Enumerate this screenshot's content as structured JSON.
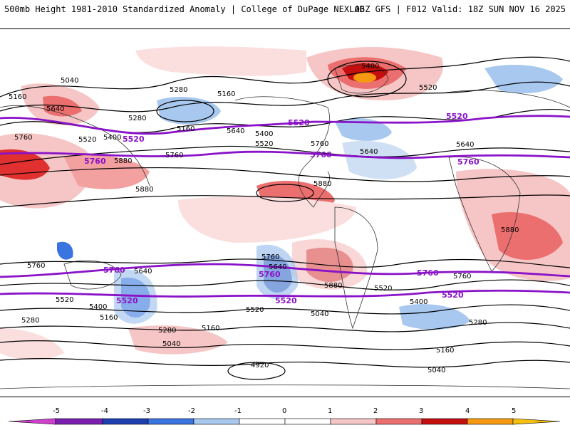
{
  "header": {
    "title": "500mb Height 1981-2010 Standardized Anomaly | College of DuPage NEXLAB",
    "run_info": "06Z GFS | F012 Valid: 18Z SUN NOV 16 2025"
  },
  "colors": {
    "thick_contour": "#8a12c8",
    "height_contour": "#000000",
    "coast": "#333333"
  },
  "contour_labels": [
    {
      "text": "5280",
      "id": "a"
    },
    {
      "text": "5400",
      "id": "b"
    },
    {
      "text": "5520",
      "id": "c"
    },
    {
      "text": "5040",
      "id": "d"
    },
    {
      "text": "5160",
      "id": "e"
    },
    {
      "text": "5640",
      "id": "f"
    },
    {
      "text": "5760",
      "id": "g"
    },
    {
      "text": "5880",
      "id": "h"
    },
    {
      "text": "4920",
      "id": "i"
    }
  ],
  "labels_visible": [
    "5280",
    "5040",
    "5160",
    "5640",
    "5760",
    "5520",
    "5400",
    "5880",
    "5280",
    "5160",
    "5640",
    "5400",
    "5520",
    "5760",
    "5880",
    "5280",
    "5400",
    "5520",
    "5160",
    "5640",
    "5760",
    "5880",
    "5760",
    "5640",
    "5520",
    "5400",
    "5160",
    "5280",
    "5040",
    "4920",
    "5280",
    "5040",
    "5160",
    "5520",
    "5640",
    "5760",
    "5880",
    "5280",
    "5040",
    "5160",
    "5400",
    "5520",
    "5640",
    "5760",
    "5880"
  ],
  "thick_contours": {
    "c5520": "5520",
    "c5760": "5760"
  },
  "colorbar": {
    "ticks": [
      "-5",
      "-4",
      "-3",
      "-2",
      "-1",
      "0",
      "1",
      "2",
      "3",
      "4",
      "5"
    ],
    "colors": [
      "#d040d0",
      "#7a1fb0",
      "#1e3fb0",
      "#3a74e0",
      "#a8c8ef",
      "#ffffff",
      "#ffffff",
      "#f6c6c6",
      "#ec6f6f",
      "#c50e0e",
      "#f59a10"
    ]
  }
}
